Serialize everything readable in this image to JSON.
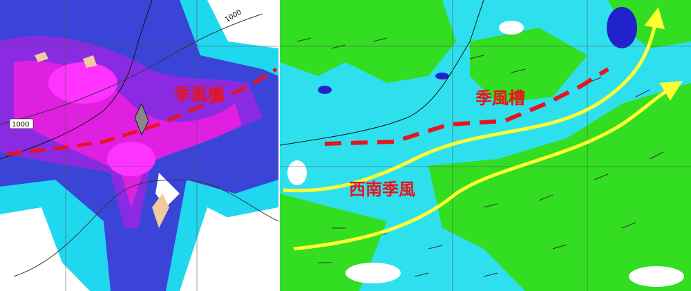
{
  "left_panel": {
    "isobar_labels": [
      "1000",
      "1000"
    ],
    "trough_label": "季風槽"
  },
  "right_panel": {
    "trough_label": "季風槽",
    "monsoon_label": "西南季風"
  }
}
